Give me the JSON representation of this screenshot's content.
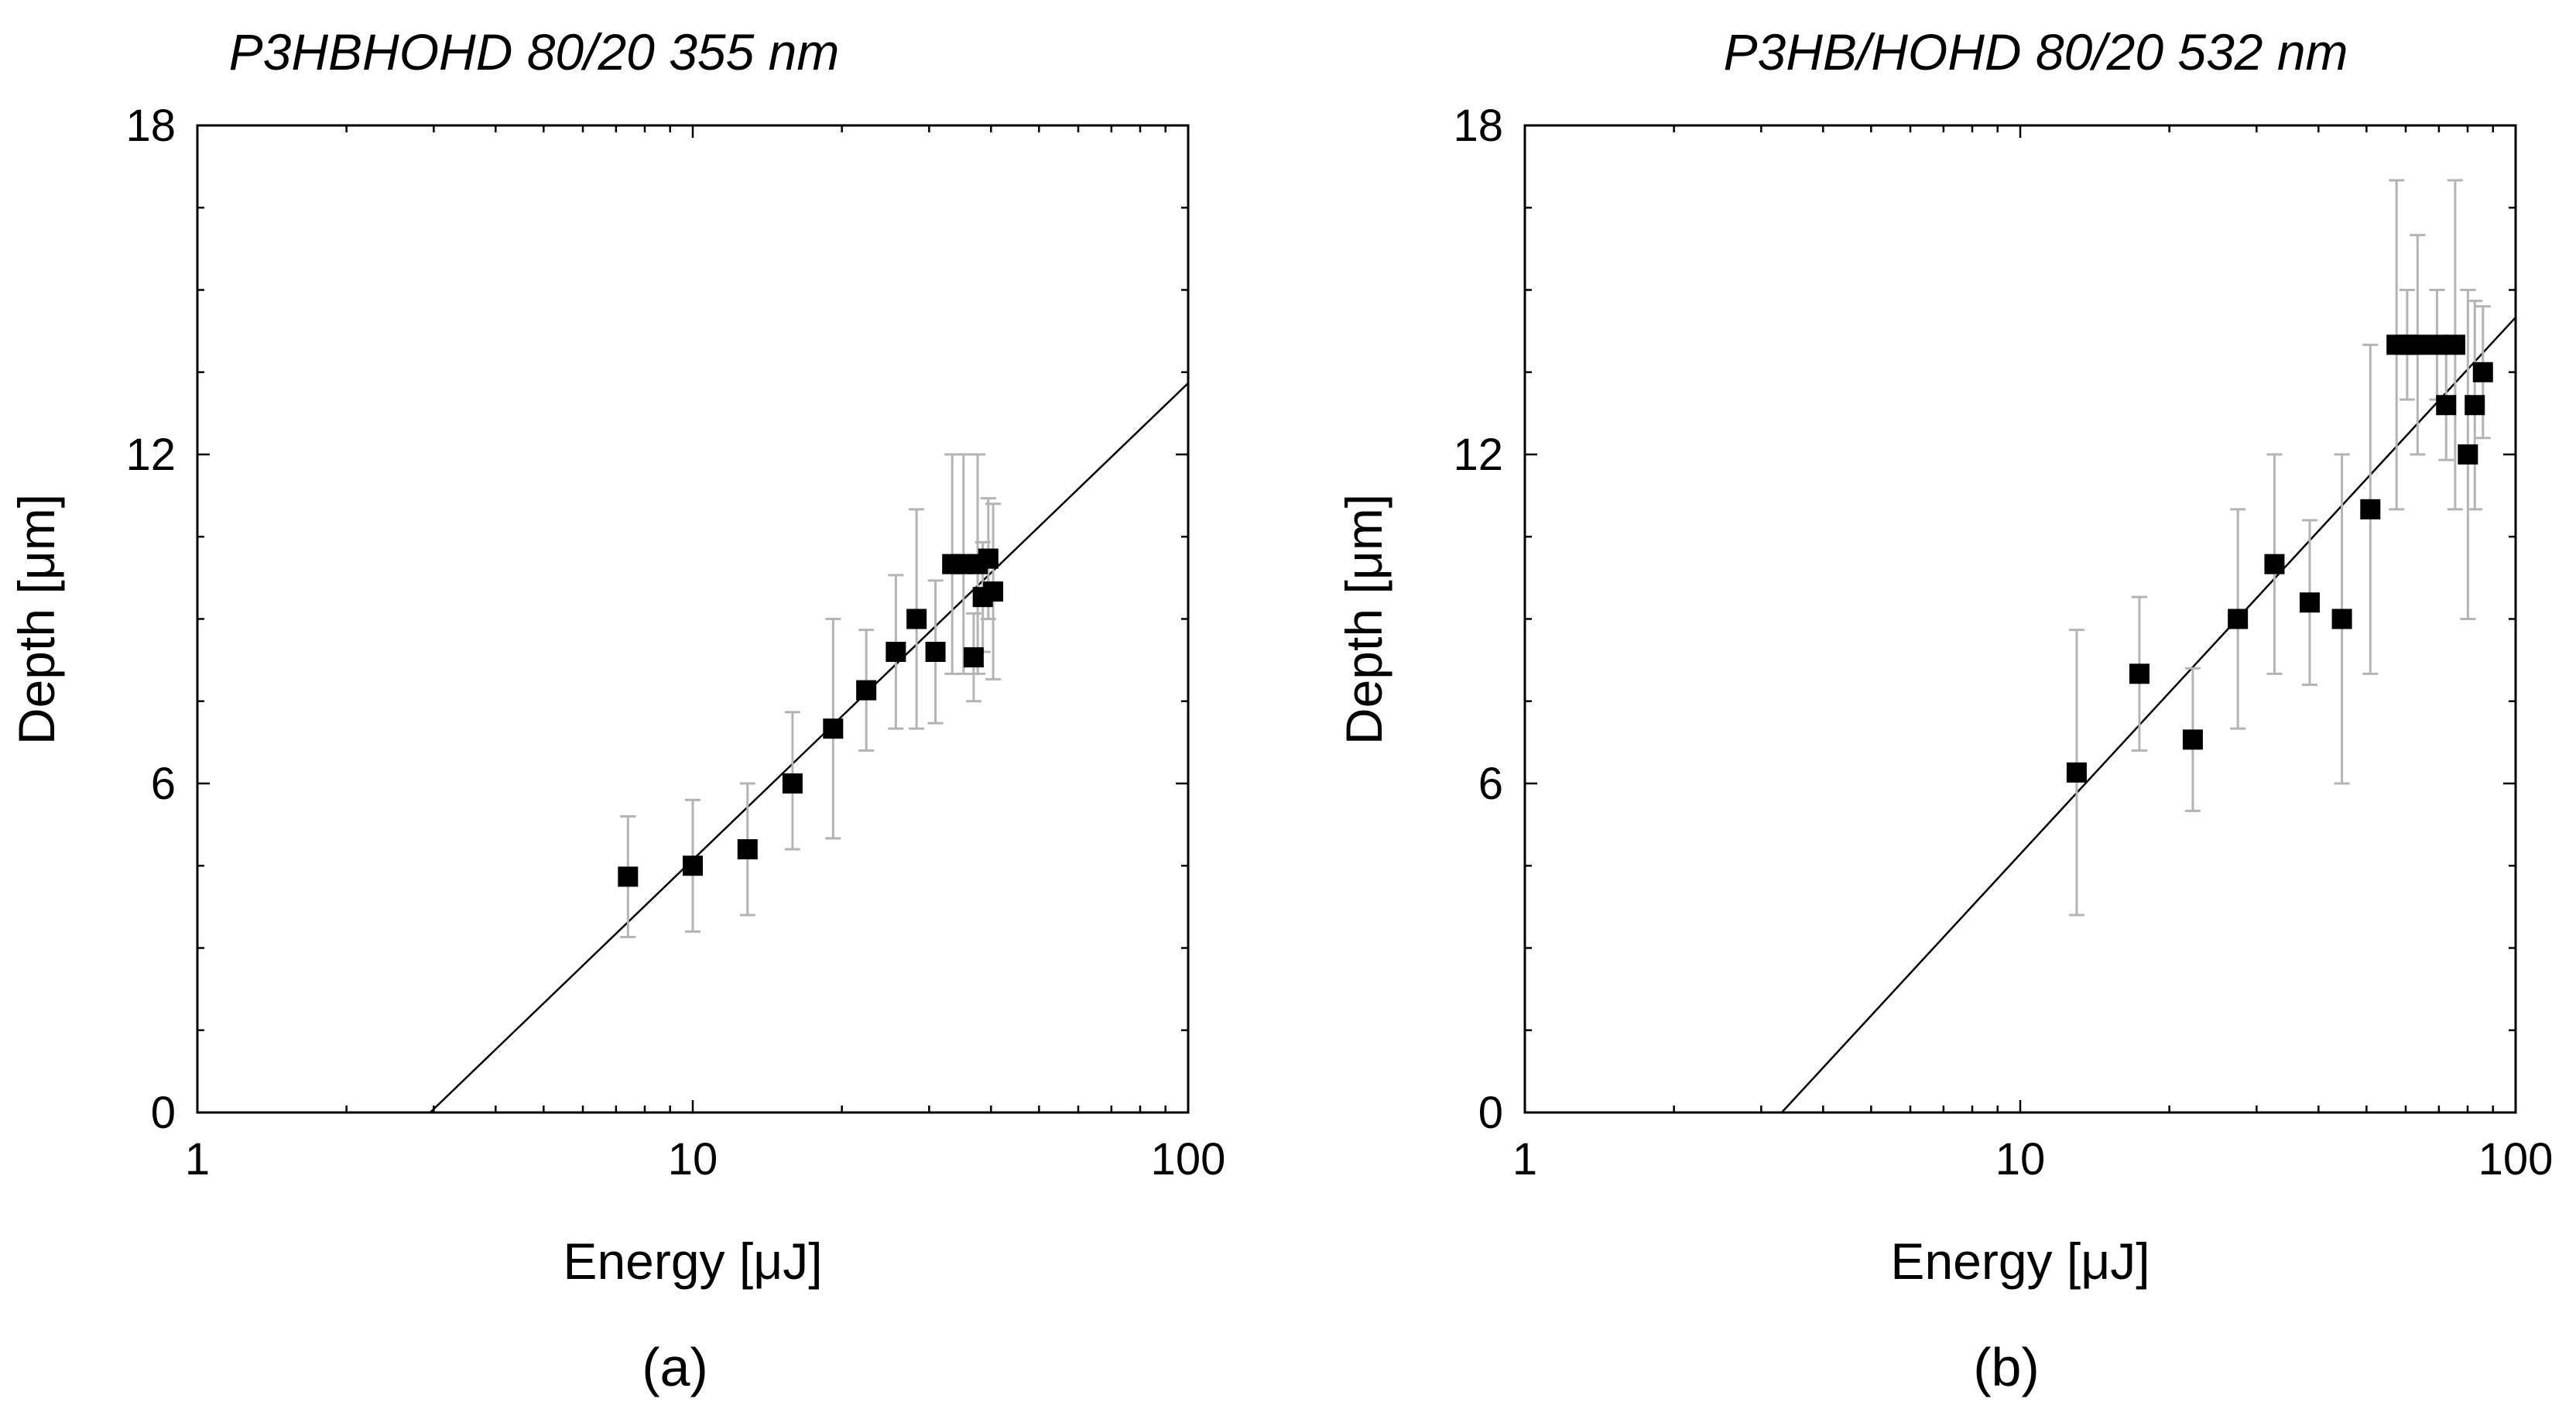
{
  "chart_data": [
    {
      "type": "scatter",
      "title": "P3HBHOHD 80/20 355 nm",
      "caption": "(a)",
      "xlabel": "Energy [μJ]",
      "ylabel": "Depth [μm]",
      "xscale": "log",
      "xlim": [
        1,
        100
      ],
      "ylim": [
        0,
        18
      ],
      "xticks": [
        1,
        10,
        100
      ],
      "xtick_labels": [
        "1",
        "10",
        "100"
      ],
      "yticks": [
        0,
        6,
        12,
        18
      ],
      "ytick_labels": [
        "0",
        "6",
        "12",
        "18"
      ],
      "fit_line": {
        "x": [
          2.95,
          100
        ],
        "y": [
          0,
          13.3
        ]
      },
      "points": [
        {
          "x": 7.4,
          "y": 4.3,
          "err_low": 3.2,
          "err_high": 5.4
        },
        {
          "x": 10.0,
          "y": 4.5,
          "err_low": 3.3,
          "err_high": 5.7
        },
        {
          "x": 12.9,
          "y": 4.8,
          "err_low": 3.6,
          "err_high": 6.0
        },
        {
          "x": 15.9,
          "y": 6.0,
          "err_low": 4.8,
          "err_high": 7.3
        },
        {
          "x": 19.2,
          "y": 7.0,
          "err_low": 5.0,
          "err_high": 9.0
        },
        {
          "x": 22.4,
          "y": 7.7,
          "err_low": 6.6,
          "err_high": 8.8
        },
        {
          "x": 25.7,
          "y": 8.4,
          "err_low": 7.0,
          "err_high": 9.8
        },
        {
          "x": 28.3,
          "y": 9.0,
          "err_low": 7.0,
          "err_high": 11.0
        },
        {
          "x": 30.9,
          "y": 8.4,
          "err_low": 7.1,
          "err_high": 9.7
        },
        {
          "x": 33.4,
          "y": 10.0,
          "err_low": 8.0,
          "err_high": 12.0
        },
        {
          "x": 35.2,
          "y": 10.0,
          "err_low": 8.0,
          "err_high": 12.0
        },
        {
          "x": 36.9,
          "y": 8.3,
          "err_low": 7.5,
          "err_high": 9.1
        },
        {
          "x": 37.6,
          "y": 10.0,
          "err_low": 8.0,
          "err_high": 12.0
        },
        {
          "x": 38.5,
          "y": 9.4,
          "err_low": 8.4,
          "err_high": 10.4
        },
        {
          "x": 39.5,
          "y": 10.1,
          "err_low": 9.0,
          "err_high": 11.2
        },
        {
          "x": 40.4,
          "y": 9.5,
          "err_low": 7.9,
          "err_high": 11.1
        }
      ]
    },
    {
      "type": "scatter",
      "title": "P3HB/HOHD 80/20 532 nm",
      "caption": "(b)",
      "xlabel": "Energy [μJ]",
      "ylabel": "Depth [μm]",
      "xscale": "log",
      "xlim": [
        1,
        100
      ],
      "ylim": [
        0,
        18
      ],
      "xticks": [
        1,
        10,
        100
      ],
      "xtick_labels": [
        "1",
        "10",
        "100"
      ],
      "yticks": [
        0,
        6,
        12,
        18
      ],
      "ytick_labels": [
        "0",
        "6",
        "12",
        "18"
      ],
      "fit_line": {
        "x": [
          3.3,
          100
        ],
        "y": [
          0,
          14.5
        ]
      },
      "points": [
        {
          "x": 13.0,
          "y": 6.2,
          "err_low": 3.6,
          "err_high": 8.8
        },
        {
          "x": 17.4,
          "y": 8.0,
          "err_low": 6.6,
          "err_high": 9.4
        },
        {
          "x": 22.3,
          "y": 6.8,
          "err_low": 5.5,
          "err_high": 8.1
        },
        {
          "x": 27.5,
          "y": 9.0,
          "err_low": 7.0,
          "err_high": 11.0
        },
        {
          "x": 32.6,
          "y": 10.0,
          "err_low": 8.0,
          "err_high": 12.0
        },
        {
          "x": 38.4,
          "y": 9.3,
          "err_low": 7.8,
          "err_high": 10.8
        },
        {
          "x": 44.6,
          "y": 9.0,
          "err_low": 6.0,
          "err_high": 12.0
        },
        {
          "x": 50.9,
          "y": 11.0,
          "err_low": 8.0,
          "err_high": 14.0
        },
        {
          "x": 57.5,
          "y": 14.0,
          "err_low": 11.0,
          "err_high": 17.0
        },
        {
          "x": 60.4,
          "y": 14.0,
          "err_low": 13.0,
          "err_high": 15.0
        },
        {
          "x": 63.4,
          "y": 14.0,
          "err_low": 12.0,
          "err_high": 16.0
        },
        {
          "x": 69.4,
          "y": 14.0,
          "err_low": 13.0,
          "err_high": 15.0
        },
        {
          "x": 72.4,
          "y": 12.9,
          "err_low": 11.9,
          "err_high": 13.9
        },
        {
          "x": 75.5,
          "y": 14.0,
          "err_low": 11.0,
          "err_high": 17.0
        },
        {
          "x": 80.1,
          "y": 12.0,
          "err_low": 9.0,
          "err_high": 15.0
        },
        {
          "x": 82.7,
          "y": 12.9,
          "err_low": 11.0,
          "err_high": 14.8
        },
        {
          "x": 85.9,
          "y": 13.5,
          "err_low": 12.3,
          "err_high": 14.7
        }
      ]
    }
  ]
}
